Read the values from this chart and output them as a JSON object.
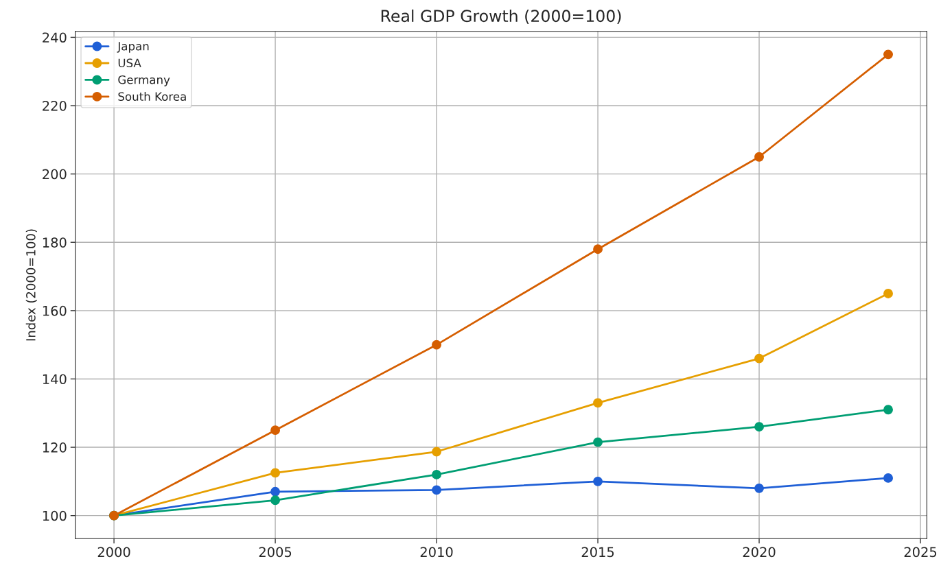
{
  "chart_data": {
    "type": "line",
    "title": "Real GDP Growth (2000=100)",
    "ylabel": "Index (2000=100)",
    "x": [
      2000,
      2005,
      2010,
      2015,
      2020,
      2024
    ],
    "series": [
      {
        "name": "Japan",
        "color": "#1f5fd6",
        "values": [
          100,
          107,
          107.5,
          110,
          108,
          111
        ]
      },
      {
        "name": "USA",
        "color": "#e69f00",
        "values": [
          100,
          112.5,
          118.7,
          133,
          146,
          165
        ]
      },
      {
        "name": "Germany",
        "color": "#009e73",
        "values": [
          100,
          104.5,
          112,
          121.5,
          126,
          131
        ]
      },
      {
        "name": "South Korea",
        "color": "#d55e00",
        "values": [
          100,
          125,
          150,
          178,
          205,
          235
        ]
      }
    ],
    "xlim": [
      1998.8,
      2025.2
    ],
    "xticks": [
      2000,
      2005,
      2010,
      2015,
      2020,
      2025
    ],
    "ylim": [
      93.25,
      241.75
    ],
    "yticks": [
      100,
      120,
      140,
      160,
      180,
      200,
      220,
      240
    ],
    "grid": true,
    "legend": "top left",
    "marker": "circle",
    "line_style": "solid"
  }
}
